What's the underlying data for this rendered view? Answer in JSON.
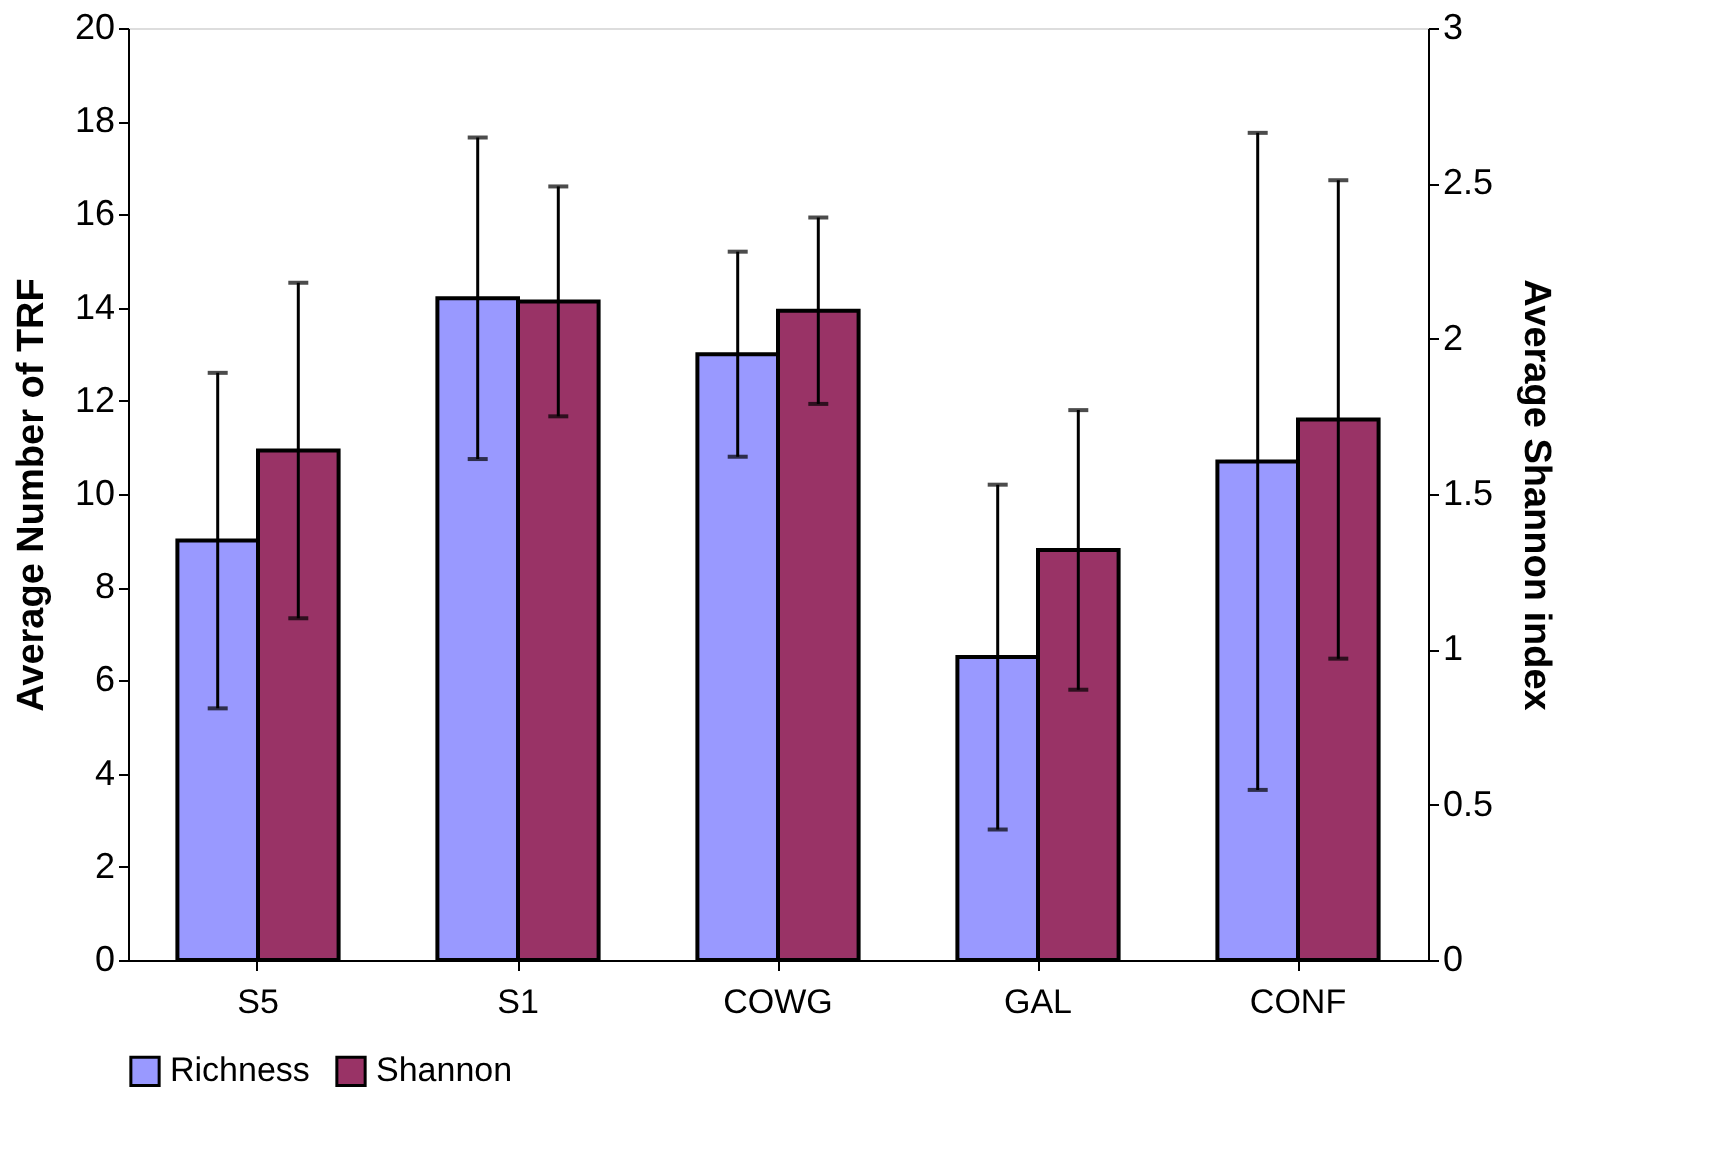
{
  "chart_data": {
    "type": "bar",
    "categories": [
      "S5",
      "S1",
      "COWG",
      "GAL",
      "CONF"
    ],
    "series": [
      {
        "name": "Richness",
        "color": "#9999ff",
        "values": [
          9.0,
          14.2,
          13.0,
          6.5,
          10.7
        ],
        "errors": [
          3.6,
          3.45,
          2.2,
          3.7,
          7.05
        ]
      },
      {
        "name": "Shannon",
        "color": "#993366",
        "axis": "y2",
        "values": [
          1.64,
          2.12,
          2.09,
          1.32,
          1.74
        ],
        "errors": [
          0.54,
          0.37,
          0.3,
          0.45,
          0.77
        ]
      }
    ],
    "ylabel": "Average Number of TRF",
    "y2label": "Average Shannon index",
    "ylim": [
      0,
      20
    ],
    "yticks": [
      0,
      2,
      4,
      6,
      8,
      10,
      12,
      14,
      16,
      18,
      20
    ],
    "y2lim": [
      0,
      3
    ],
    "y2ticks": [
      {
        "value": 0,
        "label": "0"
      },
      0.5,
      {
        "value": 1,
        "label": "1"
      },
      1.5,
      {
        "value": 2,
        "label": "2"
      },
      2.5,
      {
        "value": 3,
        "label": "3"
      }
    ],
    "grid": false,
    "legend": "bottom"
  }
}
